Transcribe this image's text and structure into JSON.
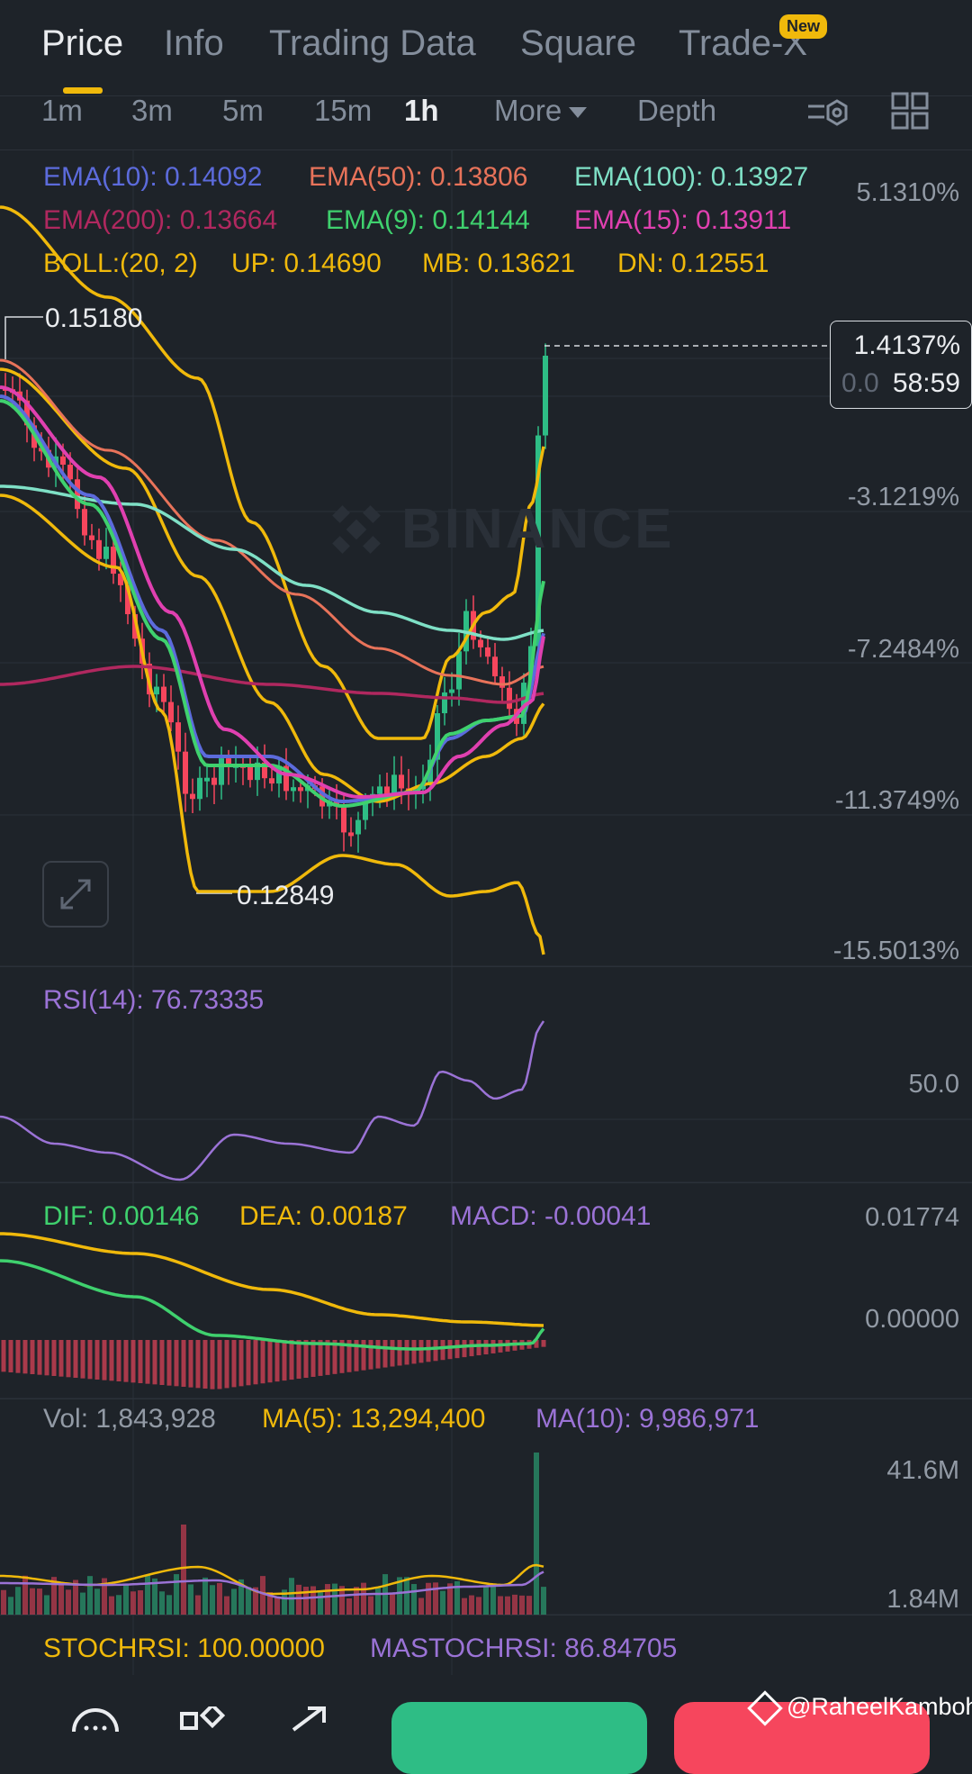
{
  "tabs": [
    {
      "label": "Price",
      "active": true
    },
    {
      "label": "Info"
    },
    {
      "label": "Trading Data"
    },
    {
      "label": "Square"
    },
    {
      "label": "Trade-X",
      "badge": "New"
    }
  ],
  "intervals": [
    "1m",
    "3m",
    "5m",
    "15m",
    "1h"
  ],
  "active_interval": "1h",
  "more_label": "More",
  "depth_label": "Depth",
  "legend": {
    "ema10": "EMA(10): 0.14092",
    "ema50": "EMA(50): 0.13806",
    "ema100": "EMA(100): 0.13927",
    "ema200": "EMA(200): 0.13664",
    "ema9": "EMA(9): 0.14144",
    "ema15": "EMA(15): 0.13911",
    "boll": "BOLL:(20, 2)",
    "boll_up": "UP: 0.14690",
    "boll_mb": "MB: 0.13621",
    "boll_dn": "DN: 0.12551"
  },
  "colors": {
    "bg": "#1e2329",
    "up": "#2ebd85",
    "down": "#f6465d",
    "yellow": "#f0b90b",
    "ema10": "#5c6bdc",
    "ema50": "#e8735a",
    "ema100": "#7fe0c6",
    "ema200": "#b0285f",
    "ema9": "#3fd16e",
    "ema15": "#e040b0",
    "purple": "#9b73d6"
  },
  "price_axis": [
    "5.1310%",
    "-3.1219%",
    "-7.2484%",
    "-11.3749%",
    "-15.5013%"
  ],
  "current_price": {
    "pct": "1.4137%",
    "countdown": "58:59",
    "hidden_text": "0.0"
  },
  "high_label": "0.15180",
  "low_label": "0.12849",
  "watermark": "BINANCE",
  "rsi": {
    "label": "RSI(14): 76.73335",
    "axis": "50.0"
  },
  "macd": {
    "dif": "DIF: 0.00146",
    "dea": "DEA: 0.00187",
    "macd": "MACD: -0.00041",
    "axis_top": "0.01774",
    "axis_zero": "0.00000"
  },
  "volume": {
    "vol": "Vol: 1,843,928",
    "ma5": "MA(5): 13,294,400",
    "ma10": "MA(10): 9,986,971",
    "axis_top": "41.6M",
    "axis_bottom": "1.84M"
  },
  "stochrsi": {
    "label": "STOCHRSI: 100.00000",
    "ma": "MASTOCHRSI: 86.84705"
  },
  "credit": "@RaheelKamboh",
  "chart_data": {
    "type": "candlestick",
    "interval": "1h",
    "high": 0.1518,
    "low": 0.12849,
    "close_change_pct": 1.4137,
    "price_axis_pct": [
      5.131,
      -3.1219,
      -7.2484,
      -11.3749,
      -15.5013
    ],
    "series": [
      {
        "name": "EMA(10)",
        "last": 0.14092
      },
      {
        "name": "EMA(50)",
        "last": 0.13806
      },
      {
        "name": "EMA(100)",
        "last": 0.13927
      },
      {
        "name": "EMA(200)",
        "last": 0.13664
      },
      {
        "name": "EMA(9)",
        "last": 0.14144
      },
      {
        "name": "EMA(15)",
        "last": 0.13911
      },
      {
        "name": "BOLL UP",
        "last": 0.1469
      },
      {
        "name": "BOLL MB",
        "last": 0.13621
      },
      {
        "name": "BOLL DN",
        "last": 0.12551
      }
    ],
    "indicators": {
      "rsi14": 76.73335,
      "dif": 0.00146,
      "dea": 0.00187,
      "macd": -0.00041,
      "vol": 1843928,
      "vol_ma5": 13294400,
      "vol_ma10": 9986971,
      "stochrsi": 100.0,
      "mastochrsi": 86.84705
    }
  }
}
